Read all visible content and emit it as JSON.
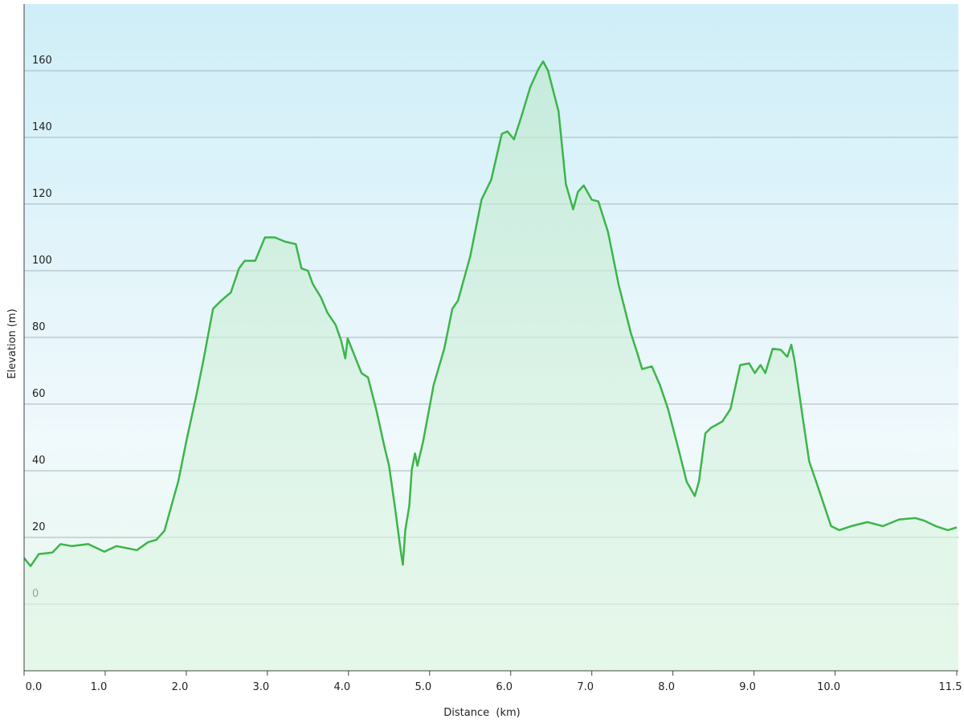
{
  "chart_data": {
    "type": "area",
    "x_label": "Distance  (km)",
    "y_label": "Elevation (m)",
    "color": "#3cb54a",
    "grid": true,
    "xlim": [
      0,
      11.5
    ],
    "ylim": [
      -20,
      180
    ],
    "xticks": [
      {
        "value": 0,
        "label": "0.0"
      },
      {
        "value": 1,
        "label": "1.0"
      },
      {
        "value": 2,
        "label": "2.0"
      },
      {
        "value": 3,
        "label": "3.0"
      },
      {
        "value": 4,
        "label": "4.0"
      },
      {
        "value": 5,
        "label": "5.0"
      },
      {
        "value": 6,
        "label": "6.0"
      },
      {
        "value": 7,
        "label": "7.0"
      },
      {
        "value": 8,
        "label": "8.0"
      },
      {
        "value": 9,
        "label": "9.0"
      },
      {
        "value": 10,
        "label": "10.0"
      },
      11.5
    ],
    "yticks": [
      0,
      20,
      40,
      60,
      80,
      100,
      120,
      140,
      160
    ],
    "x": [
      0,
      0.08,
      0.18,
      0.35,
      0.45,
      0.59,
      0.79,
      0.99,
      1.14,
      1.39,
      1.53,
      1.63,
      1.73,
      1.83,
      1.9,
      2.0,
      2.13,
      2.21,
      2.33,
      2.43,
      2.55,
      2.65,
      2.72,
      2.85,
      2.97,
      3.09,
      3.22,
      3.35,
      3.42,
      3.5,
      3.56,
      3.66,
      3.74,
      3.84,
      3.91,
      3.96,
      3.99,
      4.06,
      4.16,
      4.24,
      4.34,
      4.44,
      4.5,
      4.57,
      4.65,
      4.67,
      4.7,
      4.75,
      4.78,
      4.82,
      4.85,
      4.92,
      5.05,
      5.18,
      5.28,
      5.35,
      5.5,
      5.64,
      5.76,
      5.89,
      5.96,
      6.04,
      6.12,
      6.24,
      6.34,
      6.4,
      6.46,
      6.59,
      6.68,
      6.77,
      6.83,
      6.9,
      7.0,
      7.08,
      7.2,
      7.33,
      7.48,
      7.56,
      7.62,
      7.74,
      7.84,
      7.94,
      8.07,
      8.17,
      8.27,
      8.32,
      8.4,
      8.47,
      8.61,
      8.71,
      8.83,
      8.94,
      9.01,
      9.08,
      9.14,
      9.23,
      9.33,
      9.41,
      9.46,
      9.5,
      9.6,
      9.68,
      9.8,
      9.95,
      10.05,
      10.2,
      10.4,
      10.59,
      10.79,
      10.99,
      11.09,
      11.24,
      11.39,
      11.5
    ],
    "values": [
      13.8,
      11.4,
      15,
      15.5,
      18,
      17.4,
      18,
      15.7,
      17.4,
      16.2,
      18.6,
      19.3,
      22,
      30.7,
      36.7,
      48.8,
      63.3,
      73,
      88.6,
      91,
      93.5,
      100.7,
      103,
      103,
      110,
      110,
      108.7,
      108,
      100.7,
      100,
      96,
      92,
      87.4,
      83.8,
      79,
      73.7,
      79.7,
      75.4,
      69.3,
      68,
      58.5,
      47.6,
      41.5,
      29.5,
      15,
      11.8,
      22.2,
      29.5,
      40.3,
      45.2,
      41.5,
      48.8,
      65.7,
      76.6,
      88.6,
      91,
      104.3,
      121.3,
      127.3,
      141,
      141.8,
      139.4,
      145.4,
      155,
      160.4,
      162.8,
      160,
      147.8,
      126,
      118.4,
      123.7,
      125.6,
      121.3,
      120.8,
      111.6,
      95.9,
      81.4,
      75.4,
      70.5,
      71.3,
      65.7,
      58.5,
      46.4,
      36.7,
      32.4,
      36.7,
      51.2,
      52.9,
      54.8,
      58.5,
      71.7,
      72.2,
      69.3,
      71.7,
      69.3,
      76.6,
      76.3,
      74.2,
      77.8,
      73,
      56,
      42.8,
      34.3,
      23.4,
      22.2,
      23.4,
      24.6,
      23.4,
      25.4,
      25.8,
      25.1,
      23.4,
      22.2,
      23
    ]
  }
}
